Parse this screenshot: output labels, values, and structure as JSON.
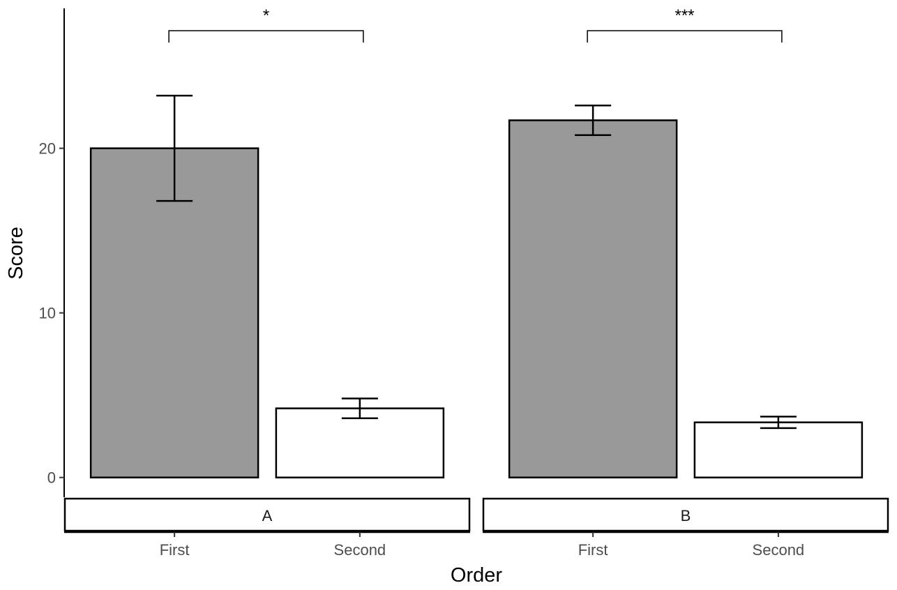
{
  "chart_data": {
    "type": "bar",
    "xlabel": "Order",
    "ylabel": "Score",
    "categories": [
      "First",
      "Second"
    ],
    "ylim": [
      -1.2,
      28.5
    ],
    "yticks": [
      "0",
      "10",
      "20"
    ],
    "grid": false,
    "panels": [
      {
        "label": "A",
        "bars": [
          {
            "category": "First",
            "value": 20.0,
            "error_low": 16.8,
            "error_high": 23.2,
            "fill": "#999999"
          },
          {
            "category": "Second",
            "value": 4.2,
            "error_low": 3.6,
            "error_high": 4.8,
            "fill": "#ffffff"
          }
        ],
        "significance": {
          "label": "*",
          "from": "First",
          "to": "Second"
        }
      },
      {
        "label": "B",
        "bars": [
          {
            "category": "First",
            "value": 21.7,
            "error_low": 20.8,
            "error_high": 22.6,
            "fill": "#999999"
          },
          {
            "category": "Second",
            "value": 3.35,
            "error_low": 3.0,
            "error_high": 3.7,
            "fill": "#ffffff"
          }
        ],
        "significance": {
          "label": "***",
          "from": "First",
          "to": "Second"
        }
      }
    ]
  }
}
